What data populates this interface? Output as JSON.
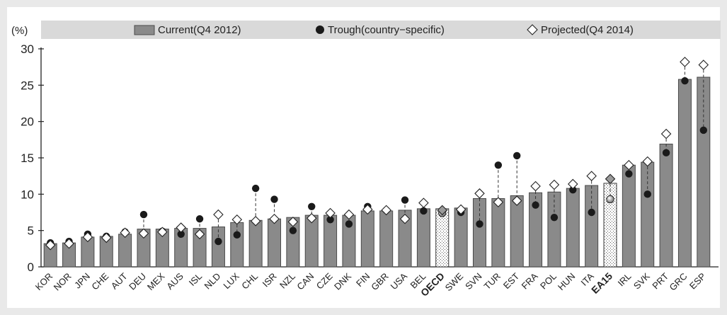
{
  "chart_data": {
    "type": "bar",
    "ylabel": "(%)",
    "ylim": [
      0,
      30
    ],
    "yticks": [
      0,
      5,
      10,
      15,
      20,
      25,
      30
    ],
    "categories": [
      "KOR",
      "NOR",
      "JPN",
      "CHE",
      "AUT",
      "DEU",
      "MEX",
      "AUS",
      "ISL",
      "NLD",
      "LUX",
      "CHL",
      "ISR",
      "NZL",
      "CAN",
      "CZE",
      "DNK",
      "FIN",
      "GBR",
      "USA",
      "BEL",
      "OECD",
      "SWE",
      "SVN",
      "TUR",
      "EST",
      "FRA",
      "POL",
      "HUN",
      "ITA",
      "EA15",
      "IRL",
      "SVK",
      "PRT",
      "GRC",
      "ESP"
    ],
    "highlighted_categories": [
      "OECD",
      "EA15"
    ],
    "grid": false,
    "legend_position": "top",
    "colors": {
      "bar": "#8a8a8a",
      "bar_highlight_fill": "#ffffff",
      "trough_marker": "#1a1a1a",
      "projected_marker_fill": "#ffffff",
      "legend_band": "#d9d9d9"
    },
    "series": [
      {
        "name": "Current(Q4 2012)",
        "marker": "bar",
        "values": [
          3.2,
          3.3,
          4.1,
          4.2,
          4.5,
          5.2,
          5.2,
          5.3,
          5.3,
          5.5,
          6.1,
          6.4,
          6.6,
          6.8,
          7.1,
          7.1,
          7.1,
          7.7,
          7.7,
          7.8,
          8.0,
          8.0,
          8.1,
          9.4,
          9.4,
          9.8,
          10.2,
          10.3,
          10.8,
          11.2,
          11.5,
          14.0,
          14.4,
          16.9,
          25.8,
          26.1
        ]
      },
      {
        "name": "Trough(country−specific)",
        "marker": "circle",
        "values": [
          3.3,
          3.5,
          4.5,
          4.2,
          4.8,
          7.2,
          4.9,
          4.5,
          6.6,
          3.5,
          4.4,
          10.8,
          9.3,
          5.0,
          8.3,
          6.5,
          5.9,
          8.3,
          7.8,
          9.2,
          7.7,
          7.4,
          7.5,
          5.9,
          14.0,
          15.3,
          8.5,
          6.8,
          10.6,
          7.5,
          9.3,
          12.8,
          10.0,
          15.7,
          25.6,
          18.8
        ]
      },
      {
        "name": "Projected(Q4 2014)",
        "marker": "diamond",
        "values": [
          3.0,
          3.2,
          4.1,
          4.0,
          4.7,
          4.6,
          4.8,
          5.4,
          4.5,
          7.2,
          6.5,
          6.3,
          6.6,
          6.2,
          6.7,
          7.4,
          7.2,
          7.9,
          7.8,
          6.6,
          8.8,
          7.8,
          7.9,
          10.1,
          8.9,
          9.1,
          11.1,
          11.3,
          11.4,
          12.5,
          12.1,
          14.0,
          14.5,
          18.3,
          28.2,
          27.8
        ]
      }
    ]
  }
}
